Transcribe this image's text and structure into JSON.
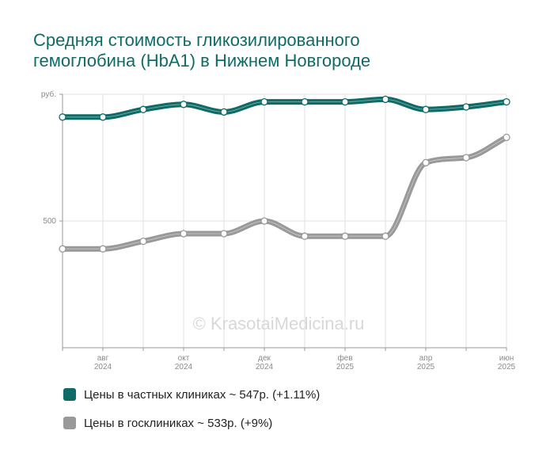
{
  "title_lines": [
    "Средняя стоимость гликозилированного",
    "гемоглобина (HbA1) в Нижнем Новгороде"
  ],
  "watermark": "© KrasotaiMedicina.ru",
  "legend": [
    {
      "label": "Цены в частных клиниках ~ 547р. (+1.11%)",
      "color": "#0f6b66"
    },
    {
      "label": "Цены в госклиниках ~ 533р. (+9%)",
      "color": "#999999"
    }
  ],
  "chart_data": {
    "type": "line",
    "y_unit_label": "руб.",
    "y_tick_labels": [
      "500"
    ],
    "x_tick_labels": [
      [
        "авг",
        "2024"
      ],
      [
        "окт",
        "2024"
      ],
      [
        "дек",
        "2024"
      ],
      [
        "фев",
        "2025"
      ],
      [
        "апр",
        "2025"
      ],
      [
        "июн",
        "2025"
      ]
    ],
    "x": [
      "2024-07",
      "2024-08",
      "2024-09",
      "2024-10",
      "2024-11",
      "2024-12",
      "2025-01",
      "2025-02",
      "2025-03",
      "2025-04",
      "2025-05",
      "2025-06"
    ],
    "series": [
      {
        "name": "Цены в частных клиниках",
        "color": "#0f6b66",
        "values": [
          541,
          541,
          544,
          546,
          543,
          547,
          547,
          547,
          548,
          544,
          545,
          547
        ]
      },
      {
        "name": "Цены в госклиниках",
        "color": "#999999",
        "values": [
          489,
          489,
          492,
          495,
          495,
          500,
          494,
          494,
          494,
          523,
          525,
          533
        ]
      }
    ],
    "ylim": [
      450,
      550
    ],
    "grid": true,
    "legend_position": "bottom-left"
  }
}
